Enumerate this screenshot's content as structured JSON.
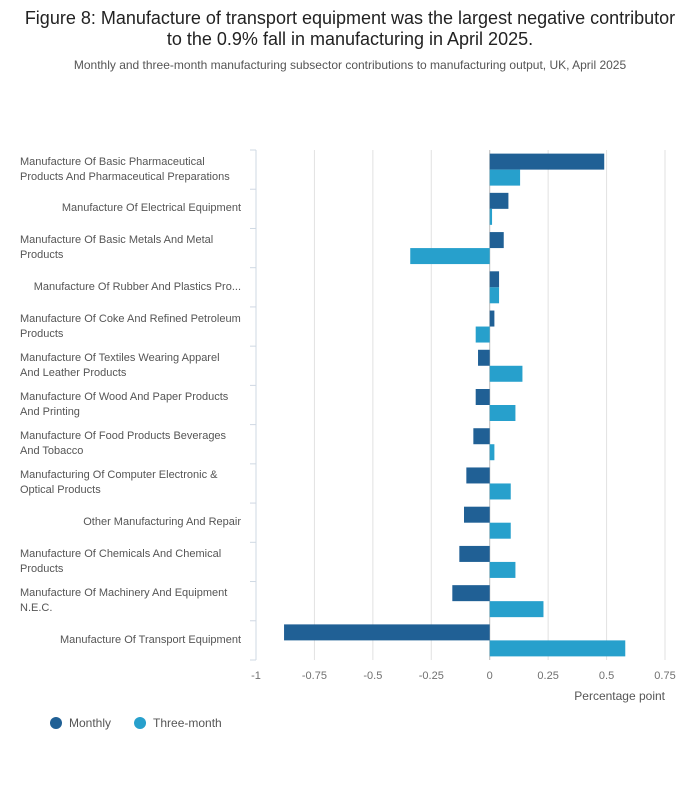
{
  "chart_data": {
    "type": "hbar",
    "title": "Figure 8: Manufacture of transport equipment was the largest negative contributor to the 0.9% fall in manufacturing in April 2025.",
    "subtitle": "Monthly and three-month manufacturing subsector contributions to manufacturing output, UK, April 2025",
    "xlabel": "Percentage point",
    "categories": [
      "Manufacture Of Basic Pharmaceutical Products And Pharmaceutical Preparations",
      "Manufacture Of Electrical Equipment",
      "Manufacture Of Basic Metals And Metal Products",
      "Manufacture Of Rubber And Plastics Pro...",
      "Manufacture Of Coke And Refined Petroleum Products",
      "Manufacture Of Textiles Wearing Apparel And Leather Products",
      "Manufacture Of Wood And Paper Products And Printing",
      "Manufacture Of Food Products Beverages And Tobacco",
      "Manufacturing Of Computer Electronic & Optical Products",
      "Other Manufacturing And Repair",
      "Manufacture Of Chemicals And Chemical Products",
      "Manufacture Of Machinery And Equipment N.E.C.",
      "Manufacture Of Transport Equipment"
    ],
    "series": [
      {
        "name": "Monthly",
        "color": "#206095",
        "values": [
          0.49,
          0.08,
          0.06,
          0.04,
          0.02,
          -0.05,
          -0.06,
          -0.07,
          -0.1,
          -0.11,
          -0.13,
          -0.16,
          -0.88
        ]
      },
      {
        "name": "Three-month",
        "color": "#27a0cc",
        "values": [
          0.13,
          0.01,
          -0.34,
          0.04,
          -0.06,
          0.14,
          0.11,
          0.02,
          0.09,
          0.09,
          0.11,
          0.23,
          0.58
        ]
      }
    ],
    "xlim": [
      -1,
      0.75
    ],
    "xticks": [
      -1,
      -0.75,
      -0.5,
      -0.25,
      0,
      0.25,
      0.5,
      0.75
    ],
    "grid": true,
    "legend": "bottom-left"
  }
}
